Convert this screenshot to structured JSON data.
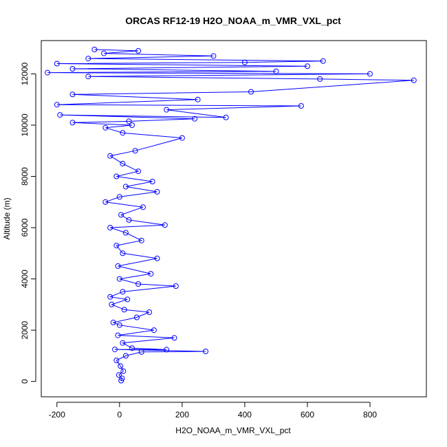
{
  "chart_data": {
    "type": "scatter",
    "title": "ORCAS RF12-19 H2O_NOAA_m_VMR_VXL_pct",
    "xlabel": "H2O_NOAA_m_VMR_VXL_pct",
    "ylabel": "Altitude (m)",
    "xlim": [
      -250,
      980
    ],
    "ylim": [
      -600,
      13300
    ],
    "xticks": [
      -200,
      0,
      200,
      400,
      600,
      800
    ],
    "yticks": [
      0,
      2000,
      4000,
      6000,
      8000,
      10000,
      12000
    ],
    "xtick_labels": [
      "-200",
      "0",
      "200",
      "400",
      "600",
      "800"
    ],
    "ytick_labels": [
      "0",
      "2000",
      "4000",
      "6000",
      "8000",
      "10000",
      "12000"
    ],
    "grid": false,
    "legend": "none",
    "color": "#0000ff",
    "series": [
      {
        "marker": "open-circle",
        "connected": true,
        "points": [
          [
            5,
            30
          ],
          [
            8,
            120
          ],
          [
            -2,
            250
          ],
          [
            12,
            400
          ],
          [
            3,
            600
          ],
          [
            -10,
            820
          ],
          [
            20,
            1000
          ],
          [
            70,
            1150
          ],
          [
            275,
            1170
          ],
          [
            -15,
            1250
          ],
          [
            150,
            1240
          ],
          [
            40,
            1300
          ],
          [
            10,
            1500
          ],
          [
            175,
            1700
          ],
          [
            -5,
            1800
          ],
          [
            110,
            2000
          ],
          [
            0,
            2200
          ],
          [
            -20,
            2300
          ],
          [
            55,
            2500
          ],
          [
            95,
            2700
          ],
          [
            15,
            2800
          ],
          [
            -25,
            3000
          ],
          [
            25,
            3200
          ],
          [
            -30,
            3300
          ],
          [
            10,
            3500
          ],
          [
            180,
            3720
          ],
          [
            60,
            3800
          ],
          [
            0,
            4000
          ],
          [
            100,
            4200
          ],
          [
            -5,
            4500
          ],
          [
            120,
            4800
          ],
          [
            10,
            5000
          ],
          [
            -10,
            5300
          ],
          [
            70,
            5500
          ],
          [
            20,
            5800
          ],
          [
            -30,
            6000
          ],
          [
            145,
            6100
          ],
          [
            30,
            6300
          ],
          [
            5,
            6500
          ],
          [
            75,
            6800
          ],
          [
            -45,
            7000
          ],
          [
            0,
            7200
          ],
          [
            120,
            7400
          ],
          [
            20,
            7600
          ],
          [
            105,
            7800
          ],
          [
            -10,
            8000
          ],
          [
            60,
            8200
          ],
          [
            10,
            8500
          ],
          [
            -30,
            8800
          ],
          [
            50,
            9000
          ],
          [
            200,
            9500
          ],
          [
            10,
            9700
          ],
          [
            -45,
            9900
          ],
          [
            40,
            10000
          ],
          [
            -150,
            10100
          ],
          [
            30,
            10150
          ],
          [
            240,
            10250
          ],
          [
            -190,
            10400
          ],
          [
            340,
            10300
          ],
          [
            150,
            10600
          ],
          [
            580,
            10750
          ],
          [
            -200,
            10800
          ],
          [
            250,
            11000
          ],
          [
            -150,
            11200
          ],
          [
            420,
            11300
          ],
          [
            940,
            11750
          ],
          [
            640,
            11800
          ],
          [
            -100,
            11900
          ],
          [
            800,
            12000
          ],
          [
            -230,
            12050
          ],
          [
            500,
            12100
          ],
          [
            -150,
            12200
          ],
          [
            600,
            12300
          ],
          [
            -200,
            12400
          ],
          [
            400,
            12450
          ],
          [
            650,
            12500
          ],
          [
            -100,
            12600
          ],
          [
            300,
            12700
          ],
          [
            -50,
            12800
          ],
          [
            60,
            12900
          ],
          [
            -80,
            12950
          ]
        ]
      }
    ]
  }
}
